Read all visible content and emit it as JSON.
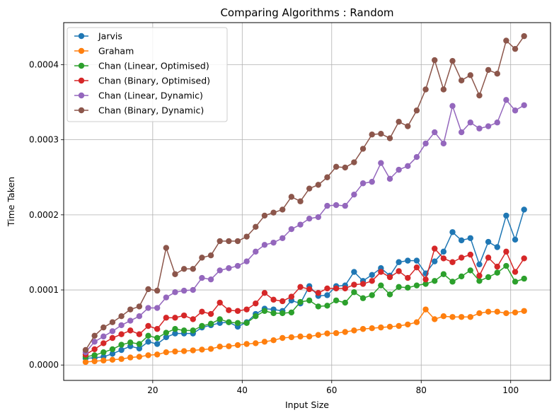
{
  "chart_data": {
    "type": "line",
    "title": "Comparing Algorithms : Random",
    "xlabel": "Input Size",
    "ylabel": "Time Taken",
    "xlim": [
      0.1,
      108.9
    ],
    "ylim": [
      -2.05e-05,
      0.000456
    ],
    "xticks": [
      20,
      40,
      60,
      80,
      100
    ],
    "yticks": [
      0.0,
      0.0001,
      0.0002,
      0.0003,
      0.0004
    ],
    "xtick_labels": [
      "20",
      "40",
      "60",
      "80",
      "100"
    ],
    "ytick_labels": [
      "0.0000",
      "0.0001",
      "0.0002",
      "0.0003",
      "0.0004"
    ],
    "grid": true,
    "legend_position": "upper-left",
    "x": [
      5,
      7,
      9,
      11,
      13,
      15,
      17,
      19,
      21,
      23,
      25,
      27,
      29,
      31,
      33,
      35,
      37,
      39,
      41,
      43,
      45,
      47,
      49,
      51,
      53,
      55,
      57,
      59,
      61,
      63,
      65,
      67,
      69,
      71,
      73,
      75,
      77,
      79,
      81,
      83,
      85,
      87,
      89,
      91,
      93,
      95,
      97,
      99,
      101,
      103
    ],
    "series": [
      {
        "name": "Jarvis",
        "color": "#1f77b4",
        "values": [
          9e-06,
          9.5e-06,
          1.1e-05,
          1.5e-05,
          2e-05,
          2.5e-05,
          2.2e-05,
          3.1e-05,
          2.8e-05,
          3.7e-05,
          4.2e-05,
          4.2e-05,
          4.2e-05,
          5e-05,
          5.3e-05,
          5.6e-05,
          5.7e-05,
          5.1e-05,
          5.7e-05,
          6.8e-05,
          7.5e-05,
          7.4e-05,
          7.2e-05,
          8.6e-05,
          8.2e-05,
          0.000105,
          9.2e-05,
          9.3e-05,
          0.000105,
          0.000106,
          0.000124,
          0.000112,
          0.00012,
          0.000129,
          0.000119,
          0.000137,
          0.000139,
          0.000139,
          0.000122,
          0.000138,
          0.000151,
          0.000177,
          0.000166,
          0.000169,
          0.000134,
          0.000164,
          0.000157,
          0.000199,
          0.000167,
          0.000207
        ]
      },
      {
        "name": "Graham",
        "color": "#ff7f0e",
        "values": [
          4e-06,
          5e-06,
          6e-06,
          7e-06,
          8e-06,
          1e-05,
          1.1e-05,
          1.3e-05,
          1.4e-05,
          1.7e-05,
          1.8e-05,
          1.85e-05,
          1.95e-05,
          2.05e-05,
          2.15e-05,
          2.45e-05,
          2.5e-05,
          2.65e-05,
          2.8e-05,
          2.9e-05,
          3.1e-05,
          3.3e-05,
          3.6e-05,
          3.7e-05,
          3.8e-05,
          3.8e-05,
          4e-05,
          4.2e-05,
          4.25e-05,
          4.4e-05,
          4.6e-05,
          4.8e-05,
          4.9e-05,
          5e-05,
          5.1e-05,
          5.2e-05,
          5.4e-05,
          5.7e-05,
          7.4e-05,
          6.1e-05,
          6.5e-05,
          6.4e-05,
          6.4e-05,
          6.4e-05,
          6.9e-05,
          7.1e-05,
          7.1e-05,
          6.9e-05,
          7e-05,
          7.2e-05
        ]
      },
      {
        "name": "Chan (Linear, Optimised)",
        "color": "#2ca02c",
        "values": [
          1.1e-05,
          1.3e-05,
          1.7e-05,
          2.1e-05,
          2.7e-05,
          3e-05,
          2.8e-05,
          3.9e-05,
          3.6e-05,
          4.3e-05,
          4.8e-05,
          4.6e-05,
          4.6e-05,
          5.2e-05,
          5.5e-05,
          6.1e-05,
          5.7e-05,
          5.6e-05,
          5.6e-05,
          6.5e-05,
          7.2e-05,
          6.9e-05,
          6.9e-05,
          7e-05,
          8.4e-05,
          8.6e-05,
          7.8e-05,
          7.9e-05,
          8.6e-05,
          8.3e-05,
          9.7e-05,
          8.9e-05,
          9.3e-05,
          0.000106,
          9.4e-05,
          0.000104,
          0.000103,
          0.000106,
          0.000108,
          0.000112,
          0.000121,
          0.000111,
          0.000118,
          0.000126,
          0.000112,
          0.000117,
          0.000123,
          0.000132,
          0.000111,
          0.000115
        ]
      },
      {
        "name": "Chan (Binary, Optimised)",
        "color": "#d62728",
        "values": [
          1.4e-05,
          2.1e-05,
          2.9e-05,
          3.6e-05,
          4.1e-05,
          4.6e-05,
          4.1e-05,
          5.2e-05,
          4.8e-05,
          6.3e-05,
          6.3e-05,
          6.6e-05,
          6.1e-05,
          7.1e-05,
          6.8e-05,
          8.3e-05,
          7.3e-05,
          7.2e-05,
          7.4e-05,
          8.2e-05,
          9.6e-05,
          8.7e-05,
          8.5e-05,
          9.1e-05,
          0.000104,
          0.000101,
          9.6e-05,
          0.000102,
          0.000102,
          0.000102,
          0.000107,
          0.000108,
          0.000112,
          0.000124,
          0.000117,
          0.000125,
          0.000116,
          0.00013,
          0.000114,
          0.000155,
          0.000142,
          0.000137,
          0.000143,
          0.000147,
          0.000119,
          0.000143,
          0.000131,
          0.000151,
          0.000124,
          0.000142
        ]
      },
      {
        "name": "Chan (Linear, Dynamic)",
        "color": "#9467bd",
        "values": [
          1.7e-05,
          3.1e-05,
          3.8e-05,
          4.5e-05,
          5.3e-05,
          5.9e-05,
          6.5e-05,
          7.6e-05,
          7.6e-05,
          9e-05,
          9.7e-05,
          9.9e-05,
          0.0001,
          0.000116,
          0.000114,
          0.000126,
          0.000129,
          0.000132,
          0.000138,
          0.000151,
          0.00016,
          0.000163,
          0.000169,
          0.000181,
          0.000187,
          0.000195,
          0.000197,
          0.000212,
          0.000213,
          0.000212,
          0.000227,
          0.000242,
          0.000244,
          0.000269,
          0.000248,
          0.00026,
          0.000265,
          0.000277,
          0.000295,
          0.00031,
          0.000295,
          0.000345,
          0.00031,
          0.000323,
          0.000315,
          0.000318,
          0.000323,
          0.000353,
          0.000339,
          0.000346
        ]
      },
      {
        "name": "Chan (Binary, Dynamic)",
        "color": "#8c564b",
        "values": [
          2e-05,
          3.9e-05,
          5e-05,
          5.7e-05,
          6.5e-05,
          7.4e-05,
          7.8e-05,
          0.000101,
          9.9e-05,
          0.000156,
          0.000121,
          0.000128,
          0.000128,
          0.000143,
          0.000146,
          0.000165,
          0.000165,
          0.000165,
          0.000171,
          0.000184,
          0.000199,
          0.000203,
          0.000207,
          0.000224,
          0.000218,
          0.000235,
          0.00024,
          0.00025,
          0.000264,
          0.000263,
          0.00027,
          0.000288,
          0.000307,
          0.000308,
          0.000302,
          0.000324,
          0.000318,
          0.000339,
          0.000367,
          0.000406,
          0.000367,
          0.000405,
          0.000379,
          0.000386,
          0.000359,
          0.000393,
          0.000388,
          0.000432,
          0.000421,
          0.000438
        ]
      }
    ]
  }
}
